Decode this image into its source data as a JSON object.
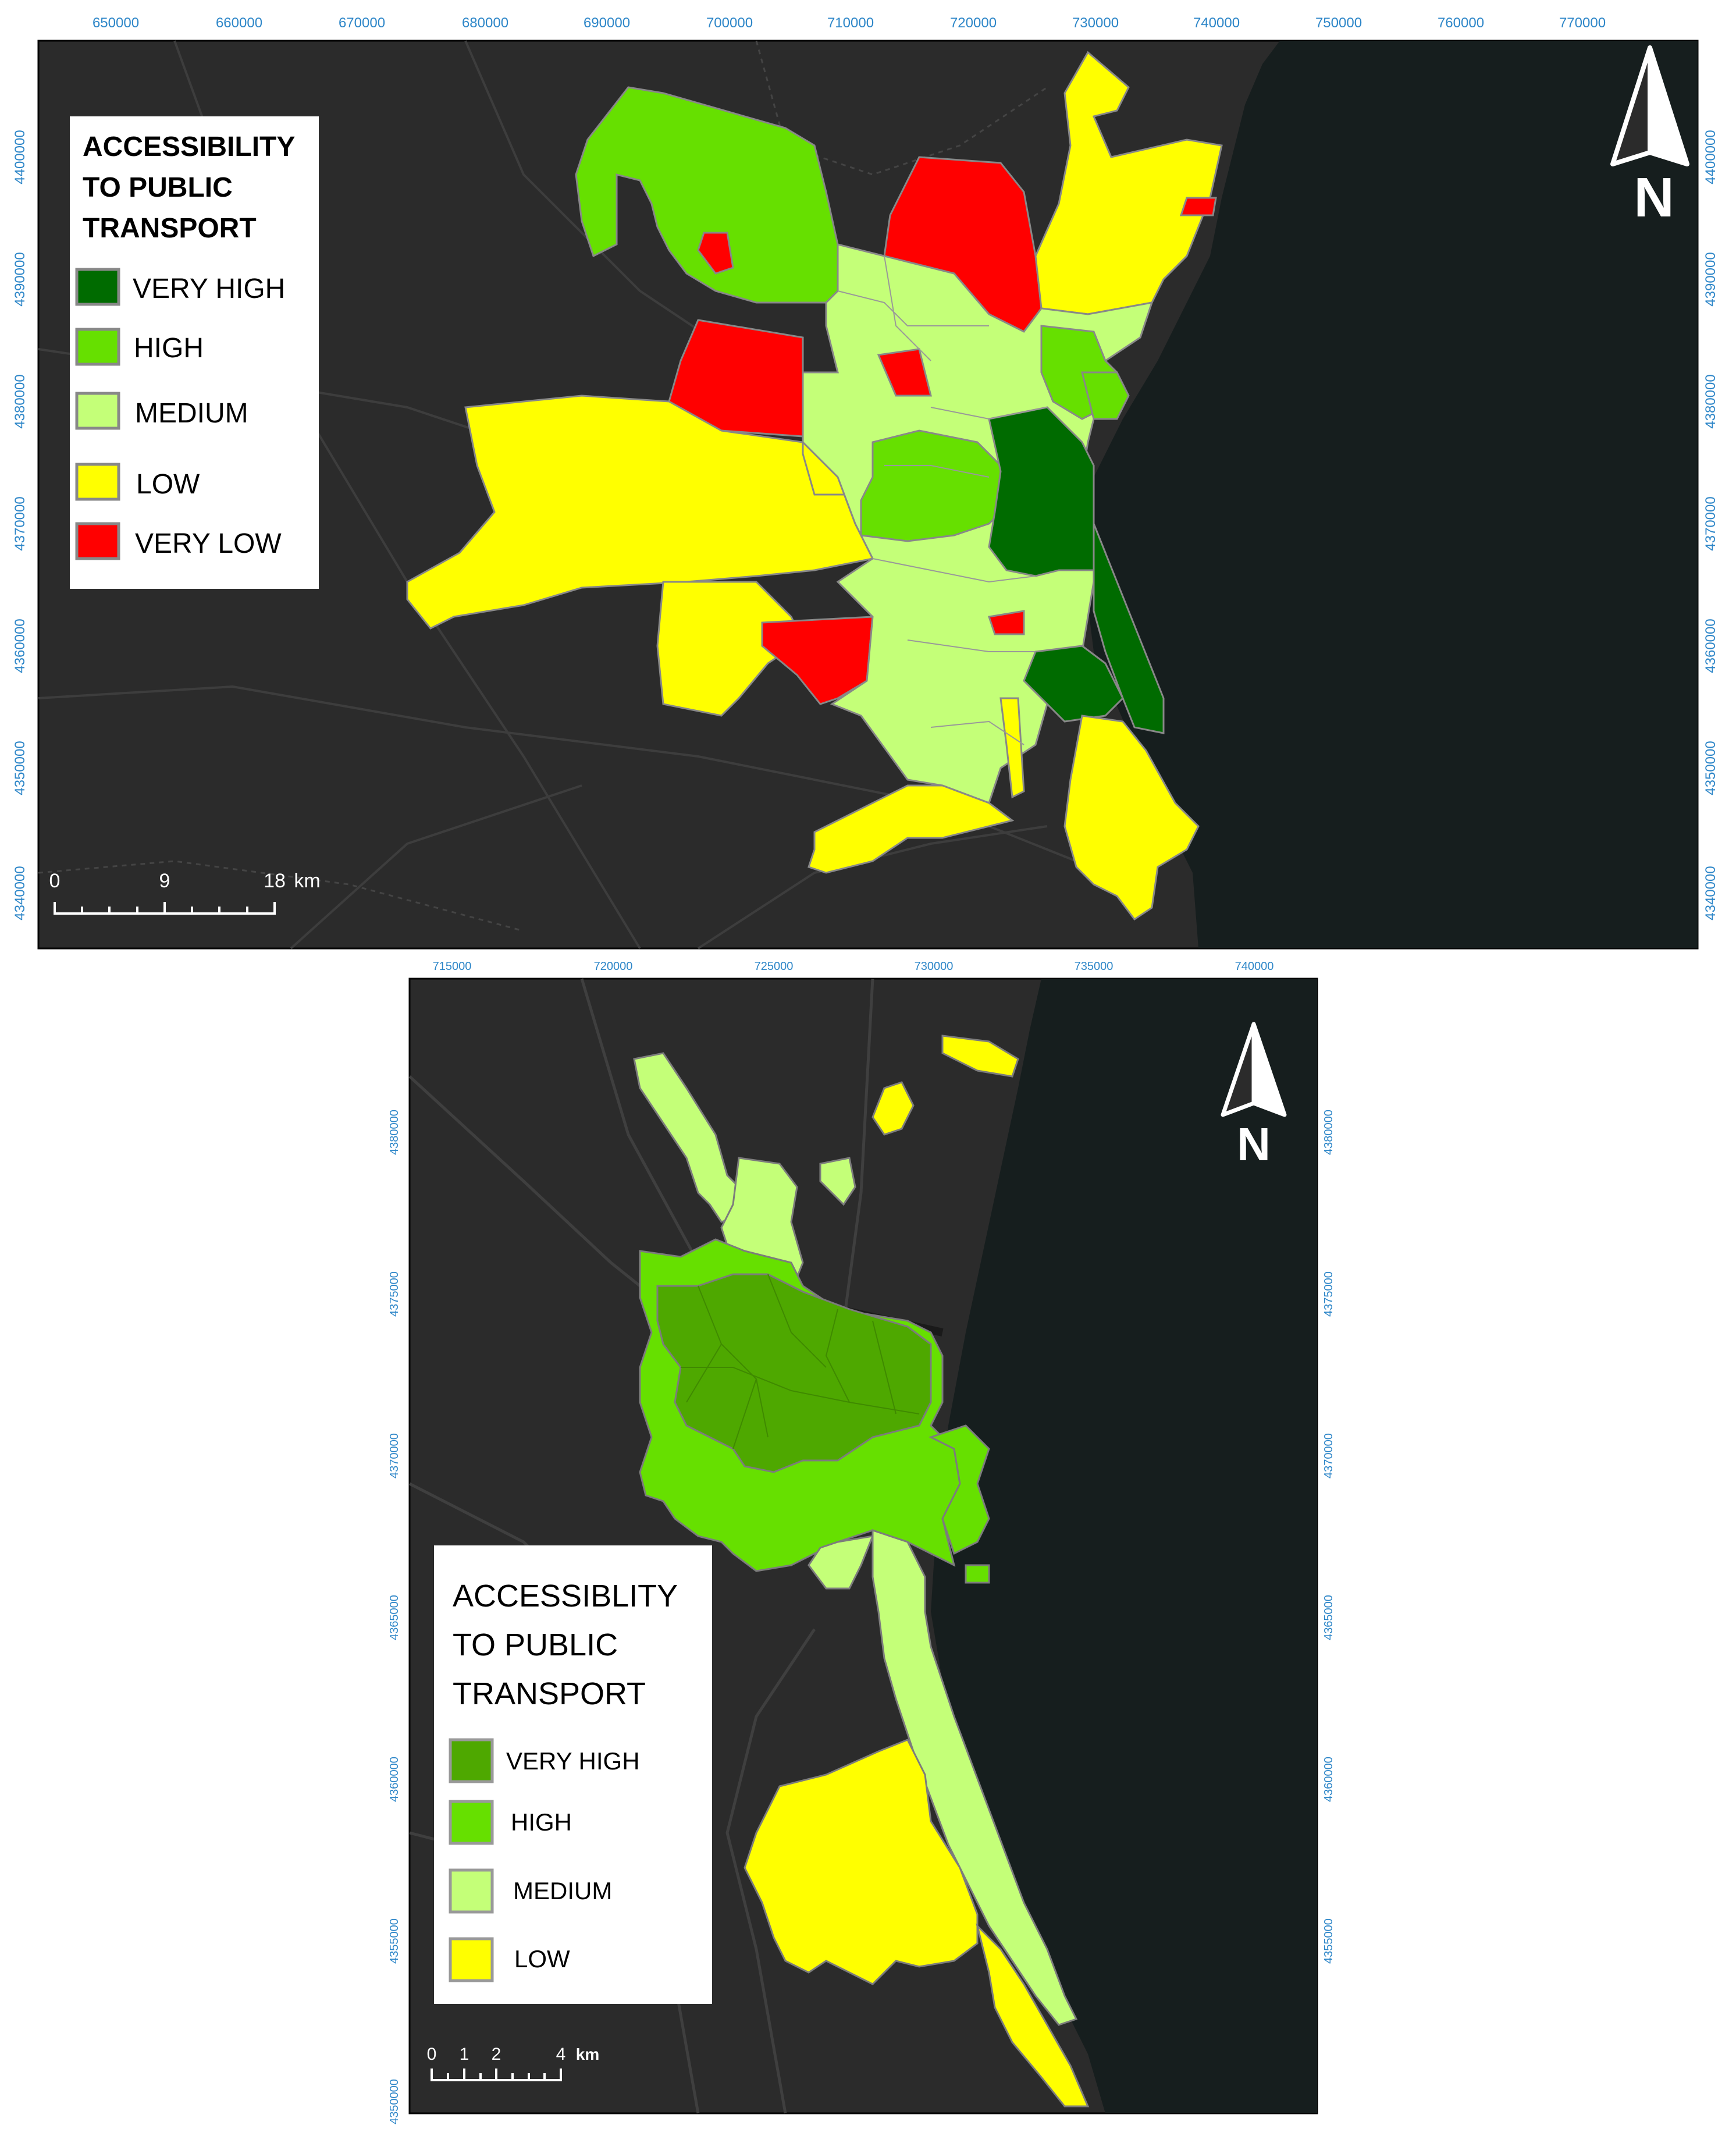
{
  "colors": {
    "very_high": "#006b00",
    "very_high_bottom": "#4ea800",
    "high": "#66e000",
    "medium": "#c4ff78",
    "low": "#ffff00",
    "very_low": "#ff0000",
    "sea": "#161e1e",
    "land": "#2b2b2b",
    "tick": "#2d86c8"
  },
  "top_map": {
    "x_ticks": [
      "650000",
      "660000",
      "670000",
      "680000",
      "690000",
      "700000",
      "710000",
      "720000",
      "730000",
      "740000",
      "750000",
      "760000",
      "770000"
    ],
    "y_ticks": [
      "4400000",
      "4390000",
      "4380000",
      "4370000",
      "4360000",
      "4350000",
      "4340000"
    ],
    "legend": {
      "title_lines": [
        "ACCESSIBILITY",
        "TO PUBLIC",
        "TRANSPORT"
      ],
      "items": [
        {
          "label": "VERY HIGH",
          "color": "#006b00"
        },
        {
          "label": "HIGH",
          "color": "#66e000"
        },
        {
          "label": "MEDIUM",
          "color": "#c4ff78"
        },
        {
          "label": "LOW",
          "color": "#ffff00"
        },
        {
          "label": "VERY LOW",
          "color": "#ff0000"
        }
      ]
    },
    "scale": {
      "labels": [
        "0",
        "9",
        "18"
      ],
      "unit": "km"
    },
    "north_label": "N"
  },
  "bottom_map": {
    "x_ticks": [
      "715000",
      "720000",
      "725000",
      "730000",
      "735000",
      "740000"
    ],
    "y_ticks": [
      "4380000",
      "4375000",
      "4370000",
      "4365000",
      "4360000",
      "4355000",
      "4350000"
    ],
    "legend": {
      "title_lines": [
        "ACCESSIBLITY",
        "TO PUBLIC",
        "TRANSPORT"
      ],
      "items": [
        {
          "label": "VERY HIGH",
          "color": "#4ea800"
        },
        {
          "label": "HIGH",
          "color": "#66e000"
        },
        {
          "label": "MEDIUM",
          "color": "#c4ff78"
        },
        {
          "label": "LOW",
          "color": "#ffff00"
        }
      ]
    },
    "scale": {
      "labels": [
        "0",
        "1",
        "2",
        "4"
      ],
      "unit": "km"
    },
    "north_label": "N"
  }
}
